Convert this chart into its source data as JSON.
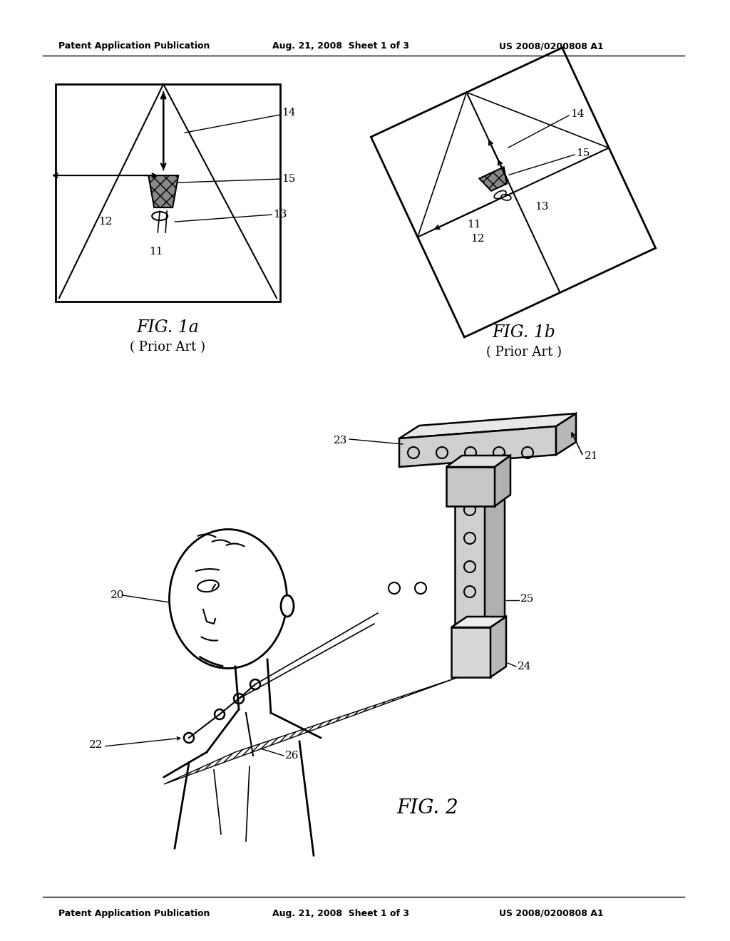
{
  "bg_color": "#ffffff",
  "header_left": "Patent Application Publication",
  "header_center": "Aug. 21, 2008  Sheet 1 of 3",
  "header_right": "US 2008/0200808 A1",
  "fig1a_label": "FIG. 1a",
  "fig1a_sub": "( Prior Art )",
  "fig1b_label": "FIG. 1b",
  "fig1b_sub": "( Prior Art )",
  "fig2_label": "FIG. 2",
  "text_color": "#000000",
  "line_color": "#000000"
}
